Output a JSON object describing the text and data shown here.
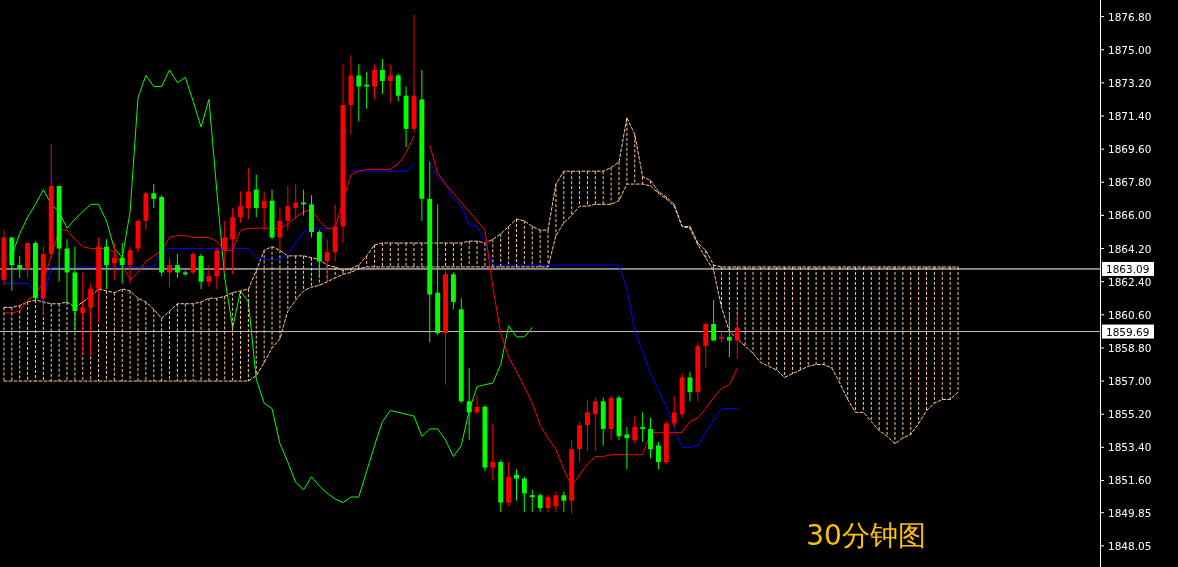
{
  "chart_data": {
    "type": "candlestick",
    "categories": [
      null,
      null,
      null,
      null,
      null,
      null,
      null,
      null,
      null,
      null,
      null,
      null,
      null,
      null,
      null,
      null,
      null,
      null,
      null,
      null,
      null,
      null,
      null,
      null,
      null,
      null,
      null,
      null,
      null,
      null,
      null,
      null,
      null,
      null,
      null,
      null,
      null,
      null,
      null,
      null,
      null,
      null,
      null,
      null,
      null,
      null,
      null,
      null,
      null,
      null,
      null,
      null,
      null,
      null,
      null,
      null,
      null,
      null,
      null,
      null,
      null,
      null,
      null,
      null,
      null,
      null,
      null,
      null,
      null,
      null,
      null,
      null,
      null,
      null,
      null,
      null,
      null,
      null,
      null,
      null,
      null,
      null,
      null,
      null,
      null,
      null,
      null,
      null,
      null,
      null,
      null,
      null,
      null,
      null,
      null,
      null,
      null,
      null,
      null,
      null,
      null,
      null,
      null,
      null,
      null,
      null,
      null,
      null,
      null,
      null,
      null,
      null,
      null,
      null,
      null,
      null,
      null,
      null,
      null,
      null,
      null,
      null
    ],
    "colors": [
      "#ff0000",
      "#00ff00",
      "#00ff00",
      "#ff0000",
      "#00ff00",
      "#ff0000",
      "#ff0000",
      "#00ff00",
      "#00ff00",
      "#00ff00",
      "#ff0000",
      "#ff0000",
      "#ff0000",
      "#00ff00",
      "#ff0000",
      "#00ff00",
      "#ff0000",
      "#ff0000",
      "#ff0000",
      "#00ff00",
      "#00ff00",
      "#ff0000",
      "#00ff00",
      "#00ff00",
      "#ff0000",
      "#00ff00",
      "#ff0000",
      "#ff0000",
      "#ff0000",
      "#ff0000",
      "#ff0000",
      "#ff0000",
      "#00ff00",
      "#ff0000",
      "#00ff00",
      "#ff0000",
      "#ff0000",
      "#ff0000",
      "#00ff00",
      "#00ff00",
      "#00ff00",
      "#ff0000",
      "#ff0000",
      "#ff0000",
      "#ff0000",
      "#00ff00",
      "#00ff00",
      "#ff0000",
      "#00ff00",
      "#ff0000",
      "#00ff00",
      "#00ff00",
      "#ff0000",
      "#00ff00",
      "#00ff00",
      "#00ff00",
      "#ff0000",
      "#00ff00",
      "#00ff00",
      "#00ff00",
      "#ff0000",
      "#00ff00",
      "#ff0000",
      "#00ff00",
      "#ff0000",
      "#00ff00",
      "#00ff00",
      "#00ff00",
      "#00ff00",
      "#ff0000",
      "#ff0000",
      "#00ff00",
      "#ff0000",
      "#ff0000",
      "#ff0000",
      "#ff0000",
      "#00ff00",
      "#ff0000",
      "#00ff00",
      "#00ff00",
      "#ff0000",
      "#00ff00",
      "#00ff00",
      "#00ff00",
      "#ff0000",
      "#ff0000",
      "#ff0000",
      "#00ff00",
      "#ff0000",
      "#ff0000",
      "#00ff00",
      "#ff0000",
      "#00ff00",
      "#ff0000",
      null,
      null,
      null,
      null,
      null,
      null,
      null,
      null,
      null,
      null,
      null,
      null,
      null,
      null,
      null,
      null,
      null,
      null,
      null,
      null,
      null,
      null,
      null,
      null,
      null,
      null,
      null,
      null
    ],
    "ohlc": [
      [
        1862.5,
        1865.2,
        1862.2,
        1864.8
      ],
      [
        1864.8,
        1864.8,
        1861.9,
        1863.3
      ],
      [
        1863.3,
        1863.8,
        1862.6,
        1863.1
      ],
      [
        1863.1,
        1864.5,
        1862.6,
        1864.5
      ],
      [
        1864.5,
        1864.6,
        1861.4,
        1861.5
      ],
      [
        1861.5,
        1864.3,
        1860.6,
        1863.9
      ],
      [
        1863.9,
        1869.9,
        1863.7,
        1867.6
      ],
      [
        1867.6,
        1867.6,
        1862.4,
        1864.2
      ],
      [
        1864.2,
        1864.7,
        1861.2,
        1862.9
      ],
      [
        1862.9,
        1864.3,
        1859.8,
        1860.8
      ],
      [
        1860.7,
        1862.9,
        1858.4,
        1861.0
      ],
      [
        1861.0,
        1862.3,
        1858.4,
        1862.0
      ],
      [
        1862.0,
        1864.8,
        1860.2,
        1864.3
      ],
      [
        1864.3,
        1864.7,
        1862.0,
        1863.3
      ],
      [
        1863.4,
        1864.5,
        1862.5,
        1863.7
      ],
      [
        1863.7,
        1864.5,
        1862.3,
        1863.3
      ],
      [
        1863.3,
        1864.3,
        1862.3,
        1864.1
      ],
      [
        1864.2,
        1865.8,
        1864.0,
        1865.7
      ],
      [
        1865.7,
        1867.3,
        1865.2,
        1867.2
      ],
      [
        1867.2,
        1867.7,
        1866.4,
        1866.9
      ],
      [
        1867.0,
        1867.1,
        1862.7,
        1862.9
      ],
      [
        1862.9,
        1863.7,
        1862.1,
        1863.3
      ],
      [
        1863.3,
        1863.9,
        1862.6,
        1862.9
      ],
      [
        1862.9,
        1863.0,
        1862.7,
        1862.8
      ],
      [
        1862.9,
        1864.0,
        1862.8,
        1863.9
      ],
      [
        1863.8,
        1863.9,
        1862.0,
        1862.4
      ],
      [
        1862.4,
        1863.3,
        1862.1,
        1862.7
      ],
      [
        1862.7,
        1864.2,
        1862.0,
        1864.1
      ],
      [
        1864.1,
        1865.7,
        1862.9,
        1864.8
      ],
      [
        1864.7,
        1866.4,
        1862.8,
        1865.9
      ],
      [
        1865.9,
        1867.3,
        1865.6,
        1866.5
      ],
      [
        1866.4,
        1868.6,
        1865.8,
        1867.3
      ],
      [
        1867.4,
        1868.2,
        1865.9,
        1866.4
      ],
      [
        1866.4,
        1867.3,
        1865.2,
        1866.8
      ],
      [
        1866.8,
        1867.4,
        1864.7,
        1864.8
      ],
      [
        1864.8,
        1866.4,
        1864.1,
        1865.7
      ],
      [
        1865.7,
        1867.6,
        1865.2,
        1866.5
      ],
      [
        1866.4,
        1867.7,
        1865.8,
        1866.7
      ],
      [
        1866.7,
        1867.4,
        1866.0,
        1866.6
      ],
      [
        1866.6,
        1867.1,
        1864.8,
        1865.1
      ],
      [
        1865.1,
        1865.2,
        1862.6,
        1863.5
      ],
      [
        1863.5,
        1864.7,
        1862.3,
        1864.0
      ],
      [
        1864.0,
        1866.6,
        1863.5,
        1865.4
      ],
      [
        1865.4,
        1874.2,
        1864.5,
        1872.0
      ],
      [
        1872.0,
        1874.7,
        1870.4,
        1873.6
      ],
      [
        1873.6,
        1874.2,
        1871.1,
        1873.0
      ],
      [
        1873.1,
        1873.8,
        1871.8,
        1873.0
      ],
      [
        1873.0,
        1874.2,
        1872.3,
        1873.9
      ],
      [
        1873.9,
        1874.5,
        1872.6,
        1873.3
      ],
      [
        1873.3,
        1874.2,
        1872.1,
        1873.6
      ],
      [
        1873.6,
        1873.7,
        1872.2,
        1872.5
      ],
      [
        1872.5,
        1873.0,
        1869.7,
        1870.7
      ],
      [
        1870.7,
        1876.9,
        1870.5,
        1872.5
      ],
      [
        1872.3,
        1873.9,
        1865.7,
        1866.9
      ],
      [
        1866.9,
        1868.9,
        1859.1,
        1861.7
      ],
      [
        1861.8,
        1866.6,
        1859.5,
        1859.6
      ],
      [
        1859.6,
        1863.0,
        1856.8,
        1862.8
      ],
      [
        1862.8,
        1862.9,
        1860.9,
        1861.3
      ],
      [
        1860.9,
        1861.5,
        1855.8,
        1855.9
      ],
      [
        1855.9,
        1857.7,
        1853.8,
        1855.3
      ],
      [
        1855.3,
        1856.2,
        1855.2,
        1855.6
      ],
      [
        1855.6,
        1855.7,
        1852.1,
        1852.3
      ],
      [
        1852.3,
        1854.7,
        1851.6,
        1852.6
      ],
      [
        1852.6,
        1852.7,
        1849.9,
        1850.4
      ],
      [
        1850.4,
        1852.6,
        1850.2,
        1851.8
      ],
      [
        1851.9,
        1852.2,
        1850.5,
        1851.7
      ],
      [
        1851.7,
        1851.8,
        1849.9,
        1850.9
      ],
      [
        1850.8,
        1851.1,
        1849.9,
        1850.7
      ],
      [
        1850.8,
        1850.9,
        1849.9,
        1850.1
      ],
      [
        1850.1,
        1850.8,
        1849.9,
        1850.7
      ],
      [
        1850.2,
        1851.0,
        1849.9,
        1850.8
      ],
      [
        1850.8,
        1851.0,
        1849.9,
        1850.5
      ],
      [
        1850.5,
        1853.8,
        1849.8,
        1853.3
      ],
      [
        1853.3,
        1854.8,
        1852.6,
        1854.6
      ],
      [
        1854.6,
        1856.0,
        1853.2,
        1855.3
      ],
      [
        1855.2,
        1856.1,
        1853.2,
        1855.9
      ],
      [
        1855.9,
        1856.1,
        1853.5,
        1854.4
      ],
      [
        1854.4,
        1856.2,
        1853.8,
        1856.1
      ],
      [
        1856.1,
        1856.2,
        1853.8,
        1854.0
      ],
      [
        1854.1,
        1854.5,
        1852.2,
        1853.9
      ],
      [
        1853.8,
        1855.1,
        1853.6,
        1854.5
      ],
      [
        1854.5,
        1855.3,
        1853.7,
        1854.4
      ],
      [
        1854.4,
        1855.0,
        1852.8,
        1853.3
      ],
      [
        1853.5,
        1853.7,
        1852.2,
        1852.6
      ],
      [
        1852.6,
        1854.8,
        1852.5,
        1854.7
      ],
      [
        1854.7,
        1856.2,
        1854.5,
        1855.3
      ],
      [
        1855.2,
        1857.4,
        1855.0,
        1857.2
      ],
      [
        1857.2,
        1857.5,
        1855.9,
        1856.4
      ],
      [
        1856.4,
        1859.1,
        1855.9,
        1858.9
      ],
      [
        1858.9,
        1860.2,
        1857.7,
        1860.1
      ],
      [
        1860.1,
        1861.4,
        1859.2,
        1859.2
      ],
      [
        1859.3,
        1859.7,
        1859.1,
        1859.4
      ],
      [
        1859.4,
        1860.6,
        1858.3,
        1859.2
      ],
      [
        1859.2,
        1860.6,
        1858.2,
        1859.9
      ],
      null,
      null,
      null,
      null,
      null,
      null,
      null,
      null,
      null,
      null,
      null,
      null,
      null,
      null,
      null,
      null,
      null,
      null,
      null,
      null,
      null,
      null,
      null,
      null,
      null,
      null,
      null,
      null
    ],
    "series": [
      {
        "type": "line",
        "color": "#ffc896",
        "line_style": "dashed",
        "values": [
          1861.0,
          1861.0,
          1861.1,
          1861.3,
          1861.4,
          1861.3,
          1861.2,
          1861.2,
          1861.3,
          1861.0,
          1861.3,
          1861.6,
          1862.0,
          1861.9,
          1861.8,
          1862.0,
          1861.9,
          1861.5,
          1861.3,
          1860.9,
          1860.4,
          1860.8,
          1861.2,
          1861.2,
          1861.2,
          1861.3,
          1861.5,
          1861.5,
          1861.6,
          1861.8,
          1861.9,
          1862.0,
          1863.0,
          1864.1,
          1864.3,
          1864.1,
          1863.8,
          1863.8,
          1863.8,
          1863.7,
          1863.6,
          1863.3,
          1863.2,
          1863.0,
          1863.1,
          1863.3,
          1863.8,
          1864.4,
          1864.5,
          1864.5,
          1864.5,
          1864.5,
          1864.5,
          1864.5,
          1864.5,
          1864.5,
          1864.5,
          1864.5,
          1864.5,
          1864.6,
          1864.6,
          1864.5,
          1864.7,
          1865.0,
          1865.4,
          1865.8,
          1865.7,
          1865.4,
          1865.2,
          1865.2,
          1867.7,
          1868.4,
          1868.4,
          1868.4,
          1868.4,
          1868.4,
          1868.4,
          1868.6,
          1868.9,
          1871.3,
          1870.4,
          1868.1,
          1867.9,
          1867.3,
          1867.0,
          1866.6,
          1865.4,
          1865.4,
          1864.5,
          1864.1,
          1863.3,
          1863.2,
          1863.2,
          1863.2,
          1863.2,
          1863.2,
          1863.2,
          1863.2,
          1863.2,
          1863.2,
          1863.2,
          1863.2,
          1863.2,
          1863.2,
          1863.2,
          1863.2,
          1863.2,
          1863.2,
          1863.2,
          1863.2,
          1863.2,
          1863.2,
          1863.2,
          1863.2,
          1863.2,
          1863.2,
          1863.2,
          1863.2,
          1863.2,
          1863.2,
          1863.2,
          1863.2
        ]
      },
      {
        "type": "line",
        "color": "#ffc896",
        "line_style": "dashed",
        "values": [
          1857.0,
          1857.0,
          1857.0,
          1857.0,
          1857.0,
          1857.0,
          1857.0,
          1857.0,
          1857.0,
          1857.0,
          1857.0,
          1857.0,
          1857.0,
          1857.0,
          1857.0,
          1857.0,
          1857.0,
          1857.0,
          1857.0,
          1857.0,
          1857.0,
          1857.0,
          1857.0,
          1857.0,
          1857.0,
          1857.0,
          1857.0,
          1857.0,
          1857.0,
          1857.0,
          1857.0,
          1857.0,
          1857.3,
          1858.0,
          1858.8,
          1859.3,
          1860.8,
          1861.4,
          1861.9,
          1862.1,
          1862.2,
          1862.4,
          1862.6,
          1862.8,
          1862.9,
          1863.1,
          1863.2,
          1863.2,
          1863.2,
          1863.2,
          1863.2,
          1863.2,
          1863.2,
          1863.2,
          1863.2,
          1863.2,
          1863.2,
          1863.2,
          1863.2,
          1863.2,
          1863.2,
          1863.2,
          1863.2,
          1863.2,
          1863.2,
          1863.2,
          1863.2,
          1863.2,
          1863.2,
          1863.2,
          1864.9,
          1865.6,
          1866.0,
          1866.5,
          1866.5,
          1866.6,
          1866.6,
          1866.6,
          1866.8,
          1867.7,
          1867.7,
          1867.7,
          1867.6,
          1867.2,
          1866.9,
          1866.5,
          1865.4,
          1865.3,
          1864.4,
          1863.7,
          1863.0,
          1861.0,
          1859.7,
          1859.3,
          1858.9,
          1858.5,
          1858.0,
          1857.8,
          1857.6,
          1857.2,
          1857.4,
          1857.6,
          1857.8,
          1857.9,
          1857.9,
          1857.7,
          1856.9,
          1856.0,
          1855.3,
          1855.3,
          1854.8,
          1854.3,
          1854.0,
          1853.6,
          1853.9,
          1854.1,
          1854.7,
          1855.4,
          1855.8,
          1856.0,
          1856.0,
          1856.4
        ]
      },
      {
        "type": "line",
        "color": "#00ff00",
        "values": [
          null,
          1863.8,
          1865.0,
          1865.9,
          1866.6,
          1867.4,
          1866.6,
          1866.2,
          1865.3,
          1865.8,
          1866.2,
          1866.6,
          1866.6,
          1865.7,
          1864.2,
          1863.7,
          1866.2,
          1872.4,
          1873.6,
          1873.0,
          1873.0,
          1873.9,
          1873.2,
          1873.5,
          1872.2,
          1870.8,
          1872.3,
          1867.3,
          1862.6,
          1859.9,
          1861.9,
          1861.3,
          1857.1,
          1855.8,
          1855.5,
          1853.6,
          1852.6,
          1851.5,
          1851.1,
          1851.8,
          1851.3,
          1850.9,
          1850.6,
          1850.4,
          1850.7,
          1850.7,
          1852.1,
          1853.5,
          1854.8,
          1855.4,
          1855.3,
          1855.2,
          1855.1,
          1854.0,
          1854.4,
          1854.4,
          1853.8,
          1852.9,
          1853.5,
          1855.4,
          1856.7,
          1856.8,
          1856.9,
          1857.9,
          1860.0,
          1859.4,
          1859.4,
          1859.9,
          null,
          null,
          null,
          null,
          null,
          null,
          null,
          null,
          null,
          null,
          null,
          null,
          null,
          null,
          null,
          null,
          null,
          null,
          null,
          null,
          null,
          null,
          null,
          null,
          null,
          null,
          null,
          null,
          null,
          null,
          null,
          null,
          null,
          null,
          null,
          null,
          null,
          null,
          null,
          null,
          null,
          null,
          null,
          null,
          null,
          null,
          null,
          null,
          null,
          null,
          null,
          null,
          null,
          null
        ]
      },
      {
        "type": "line",
        "color": "#0000ff",
        "values": [
          1862.3,
          1862.3,
          1862.3,
          1862.3,
          1861.9,
          1861.4,
          1863.2,
          1863.2,
          1863.2,
          1863.2,
          1863.2,
          1863.2,
          1863.2,
          1863.2,
          1863.2,
          1863.2,
          1863.2,
          1863.2,
          1863.2,
          1863.2,
          1864.1,
          1864.2,
          1864.2,
          1864.2,
          1864.2,
          1864.2,
          1864.2,
          1864.2,
          1864.2,
          1864.2,
          1864.2,
          1864.2,
          1863.7,
          1863.6,
          1863.6,
          1863.6,
          1863.9,
          1864.5,
          1865.1,
          1865.3,
          1865.3,
          1865.3,
          null,
          null,
          1868.4,
          1868.4,
          1868.4,
          1868.4,
          1868.4,
          1868.4,
          1868.4,
          1868.4,
          1868.8,
          null,
          1868.9,
          1868.1,
          1867.7,
          1866.9,
          1866.5,
          1865.5,
          1865.4,
          1864.6,
          1863.3,
          1863.3,
          1863.3,
          1863.3,
          1863.3,
          1863.3,
          1863.3,
          1863.3,
          1863.3,
          1863.3,
          1863.3,
          1863.3,
          1863.3,
          1863.3,
          1863.3,
          1863.3,
          1863.3,
          1862.0,
          1859.7,
          1858.6,
          1857.4,
          1856.5,
          1855.6,
          1854.5,
          1853.4,
          1853.4,
          1853.5,
          1854.2,
          1854.9,
          1855.5,
          1855.5,
          1855.5,
          null,
          null,
          null,
          null,
          null,
          null,
          null,
          null,
          null,
          null,
          null,
          null,
          null,
          null,
          null,
          null,
          null,
          null,
          null,
          null,
          null,
          null,
          null,
          null,
          null,
          null,
          null,
          null
        ]
      },
      {
        "type": "line",
        "color": "#ff0000",
        "values": [
          1860.7,
          1860.7,
          1860.8,
          1861.4,
          1861.7,
          1862.4,
          1863.8,
          1865.2,
          1865.2,
          1864.7,
          1864.3,
          1864.2,
          1864.2,
          1864.2,
          1864.0,
          1863.3,
          1862.5,
          1862.9,
          1863.5,
          1863.8,
          1864.1,
          1864.8,
          1864.9,
          1864.9,
          1864.8,
          1864.8,
          1864.8,
          1864.6,
          1864.1,
          1864.1,
          1865.2,
          1865.3,
          1865.3,
          1865.3,
          1865.3,
          1865.3,
          1865.5,
          1865.9,
          1866.2,
          1866.3,
          1865.7,
          1865.3,
          1865.3,
          1866.8,
          1868.2,
          1868.4,
          1868.5,
          1868.5,
          1868.5,
          1868.5,
          1868.8,
          1869.4,
          1870.3,
          null,
          1869.8,
          1868.3,
          1867.7,
          1867.2,
          1866.7,
          1866.2,
          1865.7,
          1865.2,
          1862.1,
          1859.6,
          1858.3,
          1857.5,
          1856.7,
          1855.8,
          1854.6,
          1853.9,
          1853.3,
          1852.2,
          1851.3,
          1851.9,
          1852.5,
          1852.9,
          1852.9,
          1853.0,
          1853.0,
          1853.0,
          1853.0,
          1853.0,
          1854.2,
          1854.2,
          1854.2,
          1854.2,
          1854.2,
          1854.8,
          1855.0,
          1855.5,
          1856.1,
          1856.6,
          1856.8,
          1857.7,
          null,
          null,
          null,
          null,
          null,
          null,
          null,
          null,
          null,
          null,
          null,
          null,
          null,
          null,
          null,
          null,
          null,
          null,
          null,
          null,
          null,
          null,
          null,
          null,
          null,
          null,
          null,
          null
        ]
      }
    ],
    "ylim": [
      1846.9,
      1877.7
    ],
    "yticks": [
      {
        "value": 1876.8,
        "label": "1876.80"
      },
      {
        "value": 1875,
        "label": "1875.00"
      },
      {
        "value": 1873.2,
        "label": "1873.20"
      },
      {
        "value": 1871.4,
        "label": "1871.40"
      },
      {
        "value": 1869.6,
        "label": "1869.60"
      },
      {
        "value": 1867.8,
        "label": "1867.80"
      },
      {
        "value": 1866,
        "label": "1866.00"
      },
      {
        "value": 1864.2,
        "label": "1864.20"
      },
      {
        "value": 1862.4,
        "label": "1862.40"
      },
      {
        "value": 1860.6,
        "label": "1860.60"
      },
      {
        "value": 1858.8,
        "label": "1858.80"
      },
      {
        "value": 1857,
        "label": "1857.00"
      },
      {
        "value": 1855.2,
        "label": "1855.20"
      },
      {
        "value": 1853.4,
        "label": "1853.40"
      },
      {
        "value": 1851.6,
        "label": "1851.60"
      },
      {
        "value": 1849.85,
        "label": "1849.85"
      },
      {
        "value": 1848.05,
        "label": "1848.05"
      }
    ],
    "ref_lines": [
      {
        "axis": "y",
        "value": 1863.09,
        "label": "1863.09",
        "color": "#ffffff"
      },
      {
        "axis": "y",
        "value": 1859.69,
        "label": "1859.69",
        "color": "#c0c0c0"
      }
    ],
    "annotations": [
      "30分钟图"
    ]
  }
}
